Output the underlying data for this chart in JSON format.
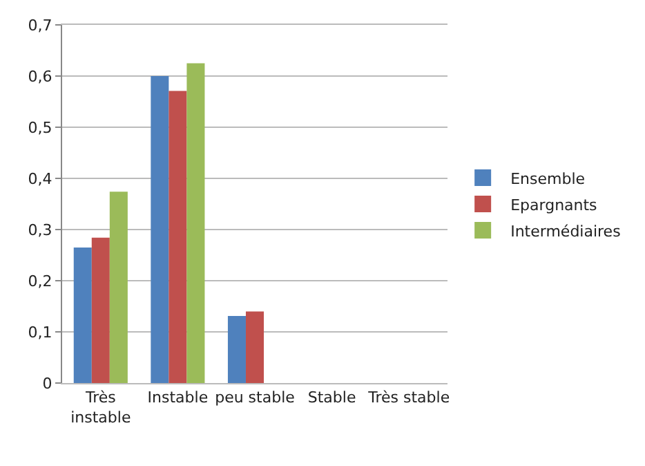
{
  "chart_data": {
    "type": "bar",
    "categories": [
      "Très\ninstable",
      "Instable",
      "peu stable",
      "Stable",
      "Très stable"
    ],
    "series": [
      {
        "name": "Ensemble",
        "color": "#4f81bd",
        "values": [
          0.265,
          0.6,
          0.131,
          0,
          0
        ]
      },
      {
        "name": "Epargnants",
        "color": "#c0504d",
        "values": [
          0.284,
          0.571,
          0.14,
          0,
          0
        ]
      },
      {
        "name": "Intermédiaires",
        "color": "#9bbb59",
        "values": [
          0.374,
          0.625,
          0,
          0,
          0
        ]
      }
    ],
    "ylim": [
      0,
      0.7
    ],
    "yticks": [
      {
        "value": 0,
        "label": "0"
      },
      {
        "value": 0.1,
        "label": "0,1"
      },
      {
        "value": 0.2,
        "label": "0,2"
      },
      {
        "value": 0.3,
        "label": "0,3"
      },
      {
        "value": 0.4,
        "label": "0,4"
      },
      {
        "value": 0.5,
        "label": "0,5"
      },
      {
        "value": 0.6,
        "label": "0,6"
      },
      {
        "value": 0.7,
        "label": "0,7"
      }
    ],
    "grid": "y",
    "legend": "right"
  }
}
